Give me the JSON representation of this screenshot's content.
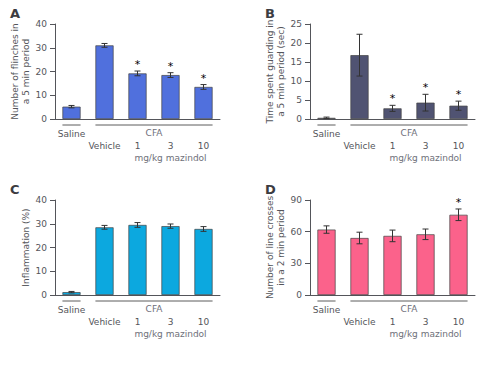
{
  "chart_data": [
    {
      "type": "bar",
      "title": "A",
      "ylabel": "Number of flinches in\na 5 min period",
      "categories": [
        "Saline",
        "Vehicle",
        "1",
        "3",
        "10"
      ],
      "values": [
        5.2,
        31.0,
        19.2,
        18.5,
        13.5
      ],
      "errors": [
        0.5,
        0.8,
        1.0,
        1.0,
        1.0
      ],
      "significant": [
        false,
        false,
        true,
        true,
        true
      ],
      "significance_mark": "*",
      "annotations": [
        "CFA",
        "mg/kg mazindol"
      ],
      "ylim": [
        0,
        40
      ],
      "yticks": [
        0,
        10,
        20,
        30,
        40
      ],
      "grid": false
    },
    {
      "type": "bar",
      "title": "B",
      "ylabel": "Time spent guarding in\na 5 min period (sec)",
      "categories": [
        "Saline",
        "Vehicle",
        "1",
        "3",
        "10"
      ],
      "values": [
        0.3,
        16.8,
        2.8,
        4.3,
        3.5
      ],
      "errors": [
        0.2,
        5.5,
        0.8,
        2.2,
        1.2
      ],
      "significant": [
        false,
        false,
        true,
        true,
        true
      ],
      "significance_mark": "*",
      "annotations": [
        "CFA",
        "mg/kg mazindol"
      ],
      "ylim": [
        0,
        25
      ],
      "yticks": [
        0,
        5,
        10,
        15,
        20,
        25
      ],
      "grid": false
    },
    {
      "type": "bar",
      "title": "C",
      "ylabel": "Inflammation (%)",
      "categories": [
        "Saline",
        "Vehicle",
        "1",
        "3",
        "10"
      ],
      "values": [
        1.2,
        28.5,
        29.5,
        29.0,
        27.8
      ],
      "errors": [
        0.3,
        0.8,
        1.0,
        0.9,
        1.0
      ],
      "significant": [
        false,
        false,
        false,
        false,
        false
      ],
      "significance_mark": "*",
      "annotations": [
        "CFA",
        "mg/kg mazindol"
      ],
      "ylim": [
        0,
        40
      ],
      "yticks": [
        0,
        10,
        20,
        30,
        40
      ],
      "grid": false
    },
    {
      "type": "bar",
      "title": "D",
      "ylabel": "Number of line crosses\nin a 2 min period",
      "categories": [
        "Saline",
        "Vehicle",
        "1",
        "3",
        "10"
      ],
      "values": [
        62.0,
        54.0,
        56.0,
        57.5,
        76.0
      ],
      "errors": [
        3.5,
        5.5,
        5.5,
        5.0,
        5.5
      ],
      "significant": [
        false,
        false,
        false,
        false,
        true
      ],
      "significance_mark": "*",
      "annotations": [
        "CFA",
        "mg/kg mazindol"
      ],
      "ylim": [
        0,
        90
      ],
      "yticks": [
        0,
        30,
        60,
        90
      ],
      "grid": false
    }
  ]
}
